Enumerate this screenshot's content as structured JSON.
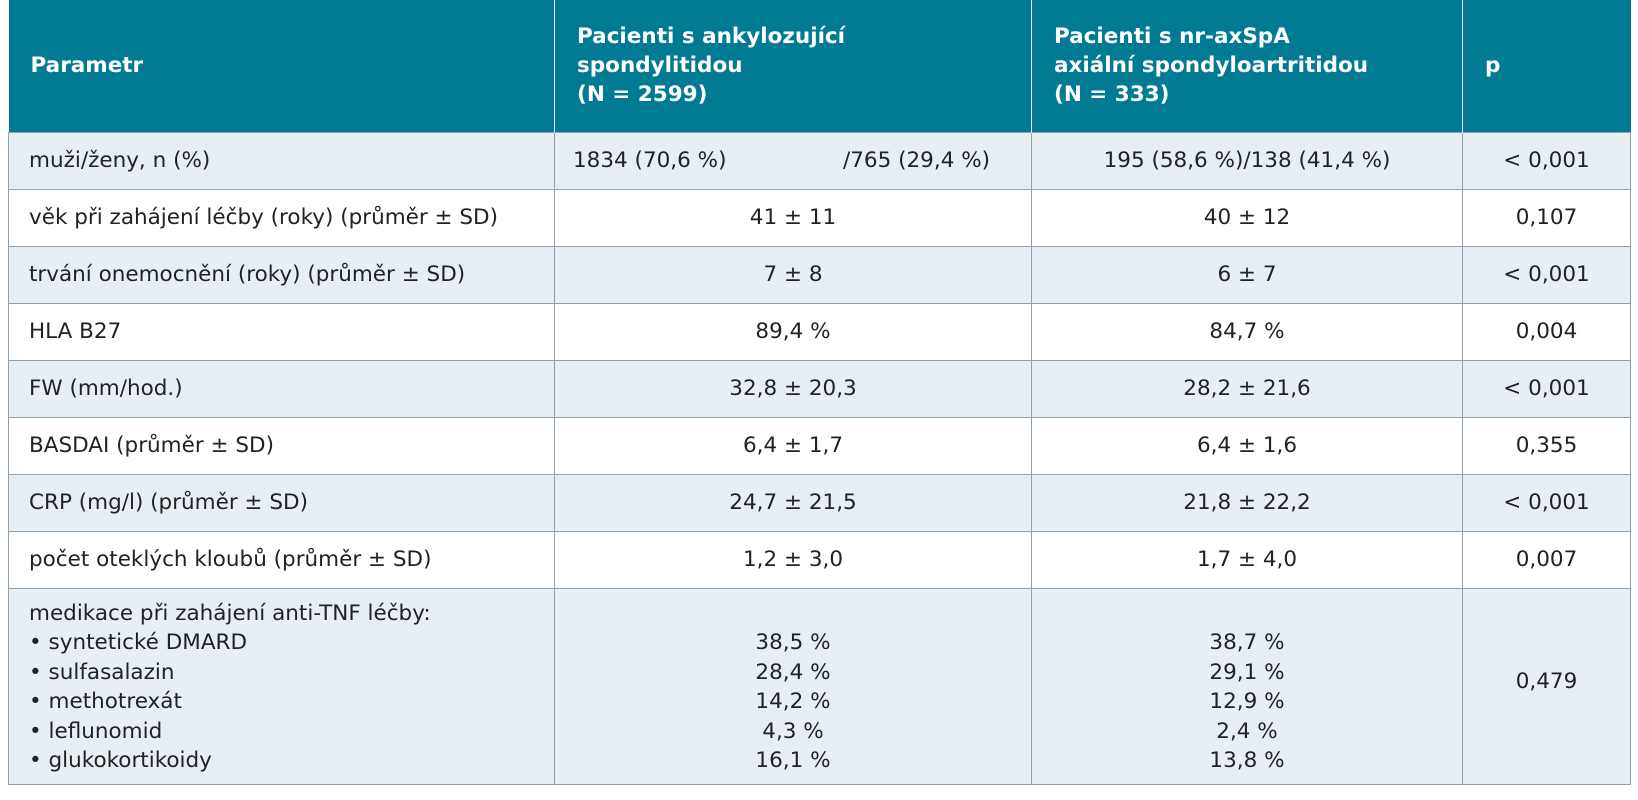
{
  "header": {
    "parameter": "Parametr",
    "as_lines": [
      "Pacienti s ankylozující",
      "spondylitidou",
      "(N = 2599)"
    ],
    "nraxspa_lines": [
      "Pacienti s nr-axSpA",
      "axiální spondyloartritidou",
      "(N = 333)"
    ],
    "p": "p"
  },
  "rows": [
    {
      "param": "muži/ženy, n (%)",
      "as_a": "1834 (70,6 %)",
      "as_b": "/765 (29,4 %)",
      "nr": "195 (58,6 %)/138 (41,4 %)",
      "p": "< 0,001"
    },
    {
      "param": "věk při zahájení léčby (roky) (průměr ± SD)",
      "as": "41 ± 11",
      "nr": "40 ± 12",
      "p": "0,107"
    },
    {
      "param": "trvání onemocnění (roky) (průměr ± SD)",
      "as": "7 ± 8",
      "nr": "6 ± 7",
      "p": "< 0,001"
    },
    {
      "param": "HLA B27",
      "as": "89,4 %",
      "nr": "84,7 %",
      "p": "0,004"
    },
    {
      "param": "FW (mm/hod.)",
      "as": "32,8 ± 20,3",
      "nr": "28,2 ± 21,6",
      "p": "< 0,001"
    },
    {
      "param": "BASDAI (průměr ± SD)",
      "as": "6,4 ± 1,7",
      "nr": "6,4 ± 1,6",
      "p": "0,355"
    },
    {
      "param": "CRP (mg/l) (průměr ± SD)",
      "as": "24,7 ± 21,5",
      "nr": "21,8 ± 22,2",
      "p": "< 0,001"
    },
    {
      "param": "počet oteklých kloubů (průměr ± SD)",
      "as": "1,2 ± 3,0",
      "nr": "1,7 ± 4,0",
      "p": "0,007"
    }
  ],
  "medication": {
    "title": "medikace při zahájení anti-TNF léčby:",
    "items": [
      "syntetické DMARD",
      "sulfasalazin",
      "methotrexát",
      "leflunomid",
      "glukokortikoidy"
    ],
    "as": [
      "38,5 %",
      "28,4 %",
      "14,2 %",
      "4,3 %",
      "16,1 %"
    ],
    "nr": [
      "38,7 %",
      "29,1 %",
      "12,9 %",
      "2,4 %",
      "13,8 %"
    ],
    "p": "0,479"
  }
}
